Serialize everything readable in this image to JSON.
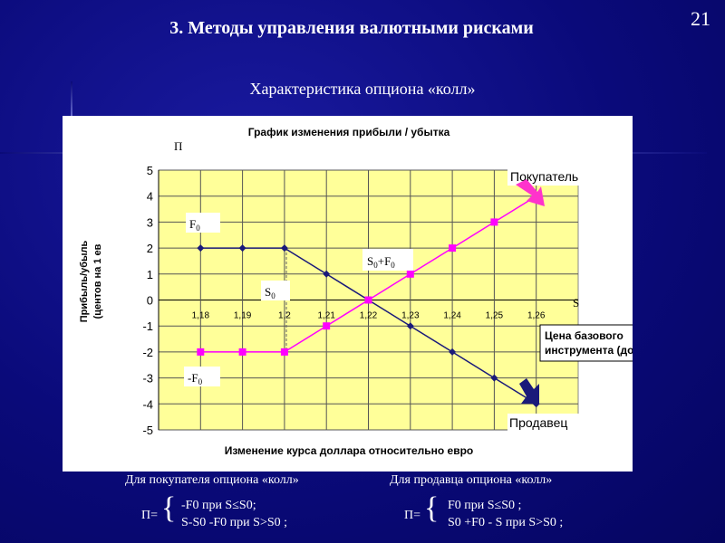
{
  "slide": {
    "number": "21",
    "title": "3. Методы управления валютными рисками",
    "subtitle": "Характеристика опциона «колл»"
  },
  "chart_data": {
    "type": "line",
    "title": "График изменения прибыли / убытка",
    "xlabel": "Изменение курса доллара относительно евро",
    "ylabel_line1": "Прибыль/убыль",
    "ylabel_line2": "(центов на 1 ев",
    "ylim": [
      -5,
      5
    ],
    "yticks": [
      "5",
      "4",
      "3",
      "2",
      "1",
      "0",
      "-1",
      "-2",
      "-3",
      "-4",
      "-5"
    ],
    "categories": [
      "1,18",
      "1,19",
      "1,2",
      "1,21",
      "1,22",
      "1,23",
      "1,24",
      "1,25",
      "1,26"
    ],
    "series": [
      {
        "name": "Продавец",
        "color": "#1a1a7a",
        "marker": "diamond",
        "values": [
          2,
          2,
          2,
          1,
          0,
          -1,
          -2,
          -3,
          -4
        ]
      },
      {
        "name": "Покупатель",
        "color": "#ff00ff",
        "marker": "square",
        "values": [
          -2,
          -2,
          -2,
          -1,
          0,
          1,
          2,
          3,
          4
        ]
      }
    ],
    "plot_background": "#ffff99",
    "grid": true,
    "annotations": {
      "pi": "П",
      "s_axis": "S",
      "f0": "F",
      "neg_f0": "-F",
      "s0": "S",
      "s0f0_a": "S",
      "s0f0_b": "+F",
      "sub0": "0",
      "buyer": "Покупатель",
      "seller": "Продавец",
      "underlying_line1": "Цена базового",
      "underlying_line2": "инструмента (доллар)"
    }
  },
  "formulas": {
    "buyer_heading": "Для покупателя опциона «колл»",
    "seller_heading": "Для продавца опциона «колл»",
    "pi_eq": "П=",
    "buyer_line1": "-F0 при S≤S0;",
    "buyer_line2": "S-S0 -F0 при S>S0 ;",
    "seller_line1": "F0 при S≤S0 ;",
    "seller_line2": "S0 +F0 - S при S>S0 ;"
  }
}
